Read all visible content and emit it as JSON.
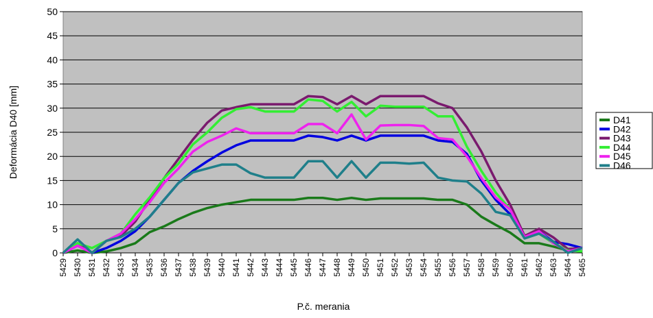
{
  "chart_data": {
    "type": "line",
    "xlabel": "P.č. merania",
    "ylabel": "Deformácia D40 [mm]",
    "categories": [
      "5429",
      "5430",
      "5431",
      "5432",
      "5433",
      "5434",
      "5435",
      "5436",
      "5437",
      "5438",
      "5439",
      "5440",
      "5441",
      "5442",
      "5443",
      "5444",
      "5445",
      "5446",
      "5447",
      "5448",
      "5449",
      "5450",
      "5451",
      "5452",
      "5453",
      "5454",
      "5455",
      "5456",
      "5457",
      "5458",
      "5459",
      "5460",
      "5461",
      "5462",
      "5463",
      "5464",
      "5465"
    ],
    "series": [
      {
        "name": "D41",
        "color": "#1a7a1a",
        "values": [
          0,
          0.5,
          0,
          0.3,
          1,
          2,
          4.3,
          5.5,
          7,
          8.3,
          9.3,
          10,
          10.5,
          11,
          11,
          11,
          11,
          11.4,
          11.4,
          11,
          11.4,
          11,
          11.3,
          11.3,
          11.3,
          11.3,
          11,
          11,
          10,
          7.5,
          5.8,
          4.2,
          2,
          2,
          1.3,
          0.5,
          0.3
        ]
      },
      {
        "name": "D42",
        "color": "#0000e0",
        "values": [
          0,
          1.5,
          0,
          1,
          2.5,
          4.5,
          7.5,
          11,
          14.5,
          17,
          19,
          20.8,
          22.3,
          23.3,
          23.3,
          23.3,
          23.3,
          24.3,
          24,
          23.3,
          24.3,
          23.3,
          24.3,
          24.3,
          24.3,
          24.3,
          23.3,
          23,
          20.5,
          15,
          11,
          8,
          3.5,
          4.5,
          2.3,
          1.8,
          1
        ]
      },
      {
        "name": "D43",
        "color": "#7a1a6e",
        "values": [
          0,
          2,
          0,
          2.5,
          3.5,
          6.5,
          11,
          15.5,
          19.5,
          23.5,
          27,
          29.5,
          30.2,
          30.8,
          30.8,
          30.8,
          30.8,
          32.5,
          32.3,
          30.8,
          32.5,
          30.8,
          32.5,
          32.5,
          32.5,
          32.5,
          31,
          30,
          26,
          21,
          15,
          10,
          3.5,
          5,
          3.2,
          0.8,
          1
        ]
      },
      {
        "name": "D44",
        "color": "#33ee33",
        "values": [
          0,
          2,
          1,
          2.5,
          4,
          8,
          11.5,
          15.5,
          18.5,
          22.5,
          25,
          28,
          29.8,
          30.2,
          29.3,
          29.3,
          29.3,
          31.8,
          31.5,
          29.3,
          31.3,
          28.3,
          30.5,
          30.3,
          30.3,
          30.3,
          28.3,
          28.3,
          22,
          17,
          12.5,
          9,
          3,
          4,
          2,
          0.5,
          0.3
        ]
      },
      {
        "name": "D45",
        "color": "#ee22ee",
        "values": [
          0,
          1.5,
          0,
          2.5,
          4,
          7,
          10.5,
          14.5,
          17.5,
          21,
          23,
          24.3,
          25.8,
          24.8,
          24.8,
          24.8,
          24.8,
          26.7,
          26.7,
          24.8,
          28.7,
          23.5,
          26.4,
          26.5,
          26.5,
          26.3,
          23.8,
          23.5,
          20,
          15.5,
          11.5,
          9,
          3.3,
          4.5,
          2,
          0.3,
          1
        ]
      },
      {
        "name": "D46",
        "color": "#1f7f8a",
        "values": [
          0,
          2.8,
          0,
          2.5,
          3.3,
          5,
          7.5,
          11,
          14.5,
          16.7,
          17.5,
          18.3,
          18.3,
          16.5,
          15.6,
          15.6,
          15.6,
          19,
          19,
          15.6,
          19,
          15.6,
          18.7,
          18.7,
          18.5,
          18.7,
          15.6,
          15,
          14.8,
          12.3,
          8.5,
          7.8,
          3,
          4,
          2.3,
          0,
          1
        ]
      }
    ],
    "ylim": [
      0,
      50
    ],
    "yticks": [
      0,
      5,
      10,
      15,
      20,
      25,
      30,
      35,
      40,
      45,
      50
    ],
    "grid": true,
    "legend": "right"
  }
}
